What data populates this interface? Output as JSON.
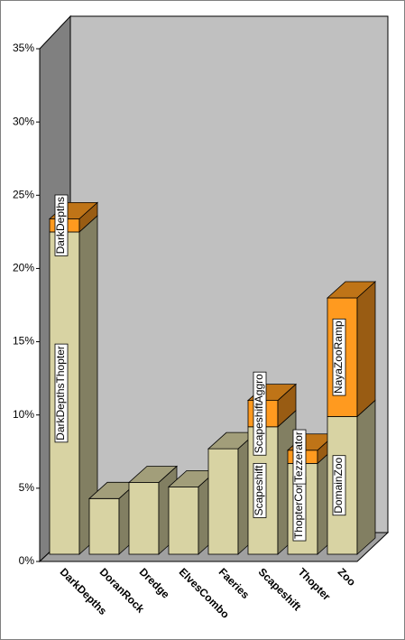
{
  "chart_data": {
    "type": "bar3d-stacked",
    "categories": [
      "DarkDepths",
      "DoranRock",
      "Dredge",
      "ElvesCombo",
      "Faeries",
      "Scapeshift",
      "Thopter",
      "Zoo"
    ],
    "series": [
      {
        "color": "#d8d3a3",
        "values": [
          22,
          3.8,
          4.9,
          4.6,
          7.2,
          8.7,
          6.2,
          9.4
        ],
        "labels": [
          "DarkDepthsThopter",
          null,
          null,
          null,
          null,
          "Scapeshift",
          "ThopterCom",
          "DomainZoo"
        ]
      },
      {
        "color": "#ff9a1f",
        "values": [
          0.9,
          0,
          0,
          0,
          0,
          1.8,
          0.9,
          8.1
        ],
        "labels": [
          "DarkDepths",
          null,
          null,
          null,
          null,
          "ScapeshiftAggro",
          "Tezzerator",
          "NayaZooRamp"
        ]
      }
    ],
    "ylim": [
      0,
      35
    ],
    "yticks": [
      {
        "value": 0,
        "label": "0%"
      },
      {
        "value": 5,
        "label": "5%"
      },
      {
        "value": 10,
        "label": "10%"
      },
      {
        "value": 15,
        "label": "15%"
      },
      {
        "value": 20,
        "label": "20%"
      },
      {
        "value": 25,
        "label": "25%"
      },
      {
        "value": 30,
        "label": "30%"
      },
      {
        "value": 35,
        "label": "35%"
      }
    ]
  }
}
